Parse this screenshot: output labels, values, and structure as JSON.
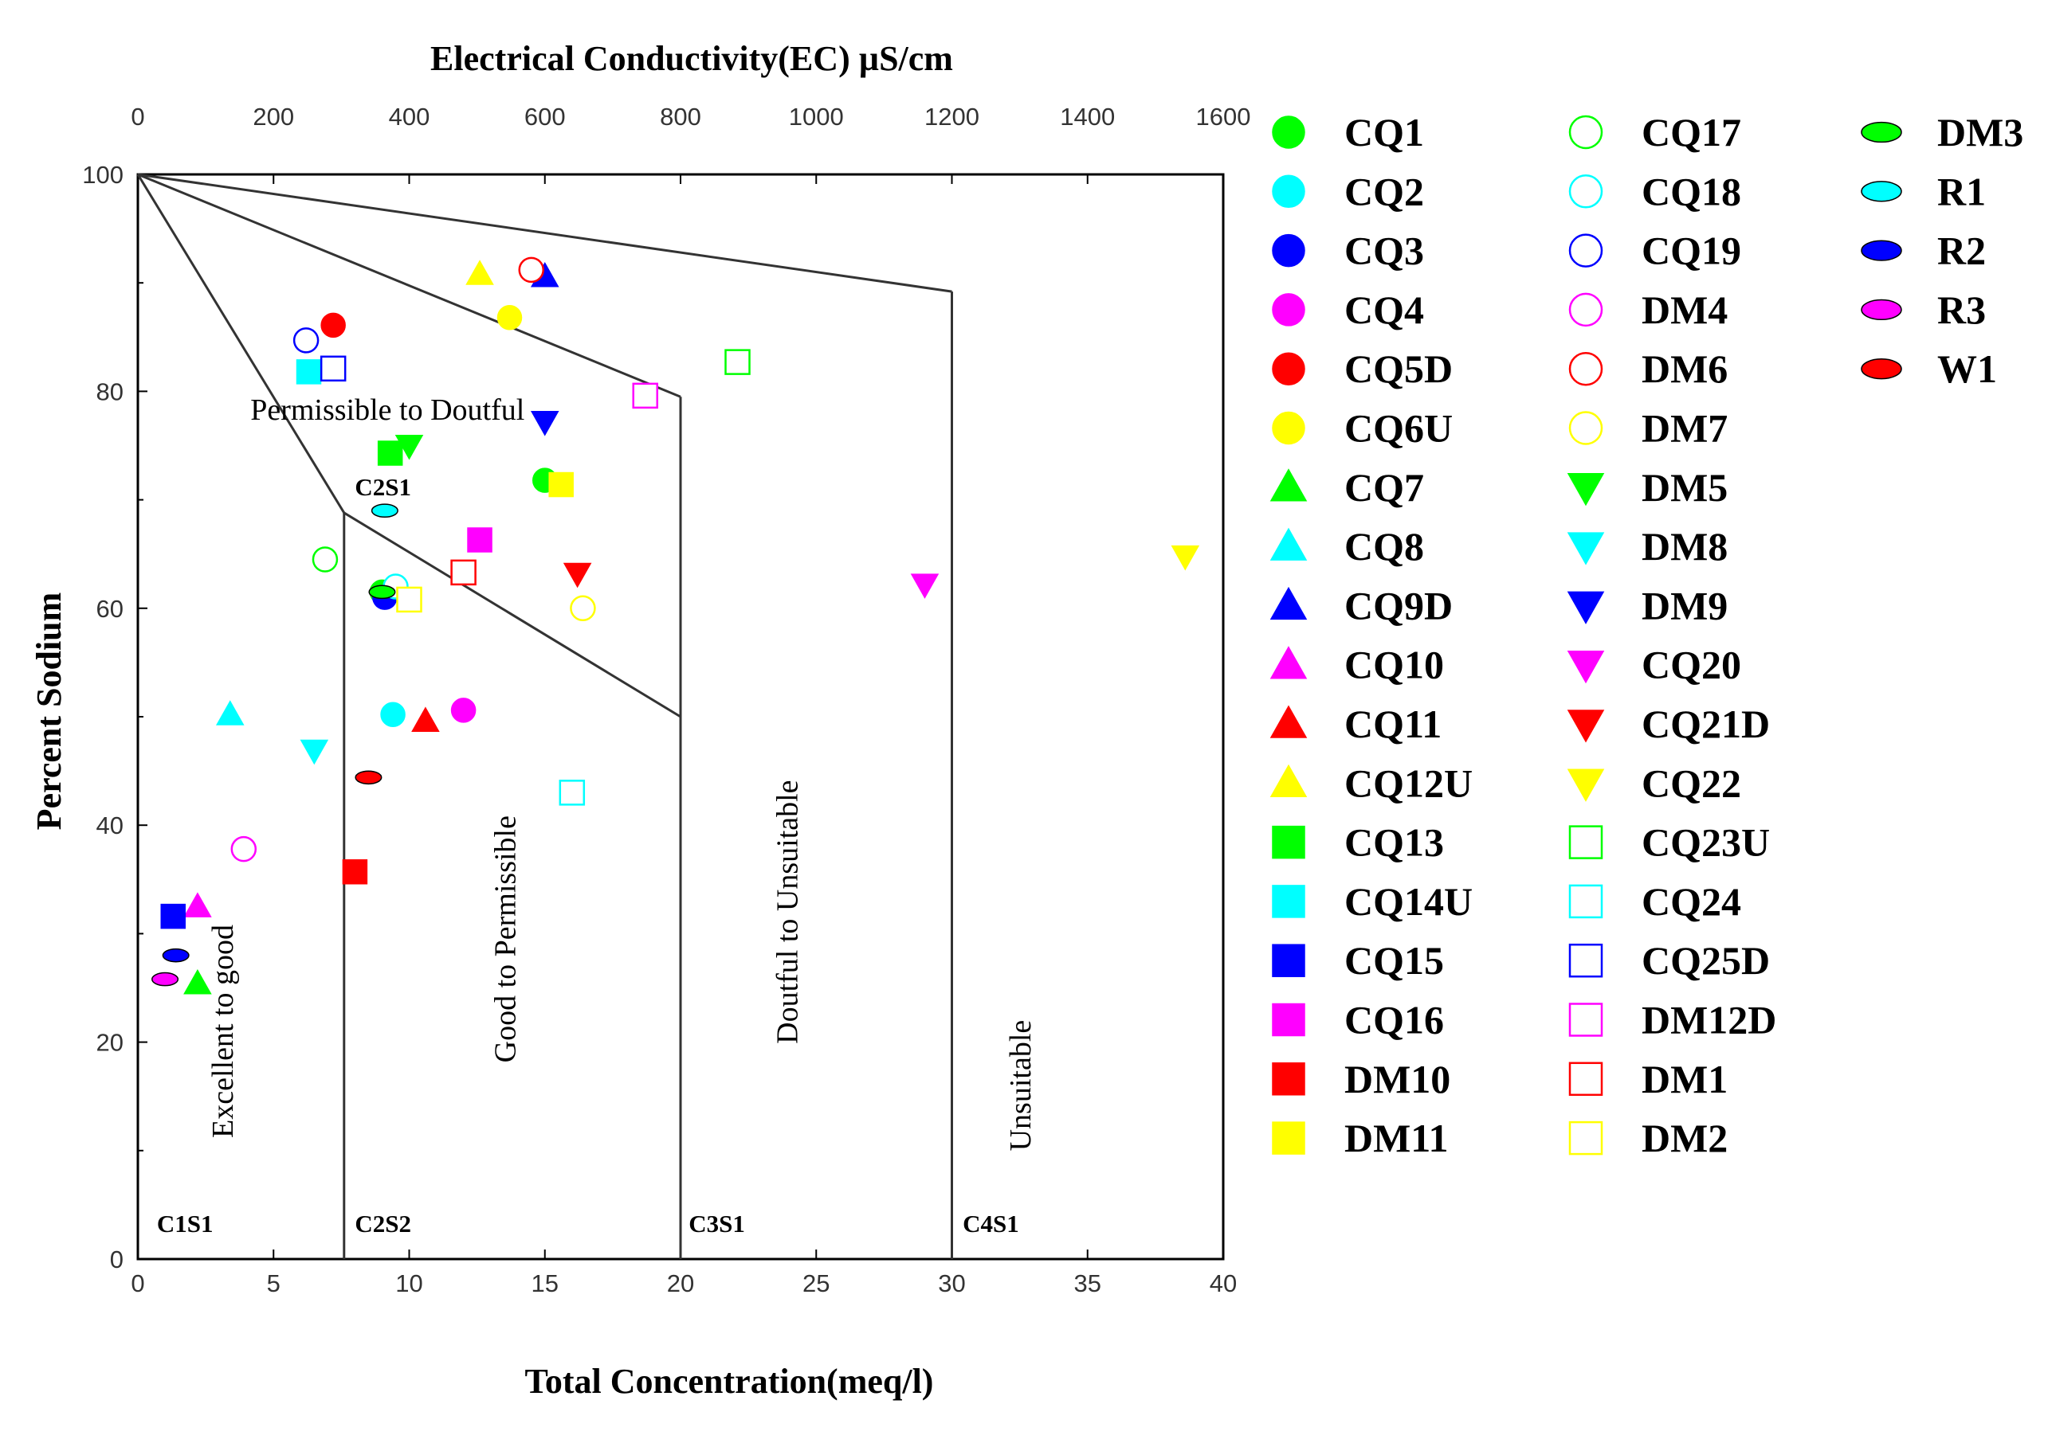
{
  "chart_data": {
    "type": "scatter",
    "title": "",
    "top_axis_label": "Electrical Conductivity(EC) µS/cm",
    "xlabel": "Total Concentration(meq/l)",
    "ylabel": "Percent Sodium",
    "xlim": [
      0,
      40
    ],
    "ylim": [
      0,
      100
    ],
    "x_ticks": [
      "0",
      "5",
      "10",
      "15",
      "20",
      "25",
      "30",
      "35",
      "40"
    ],
    "y_ticks": [
      "0",
      "20",
      "40",
      "60",
      "80",
      "100"
    ],
    "top_ticks": [
      "0",
      "200",
      "400",
      "600",
      "800",
      "1000",
      "1200",
      "1400",
      "1600"
    ],
    "boundaries": [
      {
        "from": [
          0,
          100
        ],
        "to": [
          7.6,
          68.8
        ]
      },
      {
        "from": [
          7.6,
          68.8
        ],
        "to": [
          20,
          50
        ]
      },
      {
        "from": [
          0,
          100
        ],
        "to": [
          20,
          79.5
        ]
      },
      {
        "from": [
          0,
          100
        ],
        "to": [
          30,
          89.2
        ]
      },
      {
        "from": [
          7.6,
          68.8
        ],
        "to": [
          7.6,
          0
        ]
      },
      {
        "from": [
          20,
          79.5
        ],
        "to": [
          20,
          0
        ]
      },
      {
        "from": [
          30,
          89.2
        ],
        "to": [
          30,
          0
        ]
      }
    ],
    "zone_labels": [
      {
        "text": "Permissible to Doutful",
        "x": 9.2,
        "y": 77.4,
        "rotate": false
      },
      {
        "text": "Excellent to good",
        "x": 3.5,
        "y": 21,
        "rotate": true
      },
      {
        "text": "Good to Permissible",
        "x": 13.9,
        "y": 29.5,
        "rotate": true
      },
      {
        "text": "Doutful to  Unsuitable",
        "x": 24.3,
        "y": 32,
        "rotate": true
      },
      {
        "text": "Unsuitable",
        "x": 32.9,
        "y": 16,
        "rotate": true
      }
    ],
    "class_codes": [
      {
        "text": "C1S1",
        "x": 0.7,
        "y": 2.5
      },
      {
        "text": "C2S2",
        "x": 8,
        "y": 2.5
      },
      {
        "text": "C3S1",
        "x": 20.3,
        "y": 2.5
      },
      {
        "text": "C4S1",
        "x": 30.4,
        "y": 2.5
      },
      {
        "text": "C2S1",
        "x": 8,
        "y": 70.4
      }
    ],
    "series": [
      {
        "name": "CQ1",
        "shape": "circle",
        "fill": true,
        "color": "#00ff00",
        "x": [
          15.0,
          9.0
        ],
        "y": [
          71.8,
          61.5
        ]
      },
      {
        "name": "CQ2",
        "shape": "circle",
        "fill": true,
        "color": "#00ffff",
        "x": [
          9.4
        ],
        "y": [
          50.2
        ]
      },
      {
        "name": "CQ3",
        "shape": "circle",
        "fill": true,
        "color": "#0000ff",
        "x": [
          9.1
        ],
        "y": [
          61.0
        ]
      },
      {
        "name": "CQ4",
        "shape": "circle",
        "fill": true,
        "color": "#ff00ff",
        "x": [
          12.0
        ],
        "y": [
          50.6
        ]
      },
      {
        "name": "CQ5D",
        "shape": "circle",
        "fill": true,
        "color": "#ff0000",
        "x": [
          7.2
        ],
        "y": [
          86.1
        ]
      },
      {
        "name": "CQ6U",
        "shape": "circle",
        "fill": true,
        "color": "#ffff00",
        "x": [
          13.7
        ],
        "y": [
          86.8
        ]
      },
      {
        "name": "CQ7",
        "shape": "triangle-up",
        "fill": true,
        "color": "#00ff00",
        "x": [
          2.2
        ],
        "y": [
          25.4
        ]
      },
      {
        "name": "CQ8",
        "shape": "triangle-up",
        "fill": true,
        "color": "#00ffff",
        "x": [
          3.4
        ],
        "y": [
          50.2
        ]
      },
      {
        "name": "CQ9D",
        "shape": "triangle-up",
        "fill": true,
        "color": "#0000ff",
        "x": [
          15.0
        ],
        "y": [
          90.6
        ]
      },
      {
        "name": "CQ10",
        "shape": "triangle-up",
        "fill": true,
        "color": "#ff00ff",
        "x": [
          2.2
        ],
        "y": [
          32.5
        ]
      },
      {
        "name": "CQ11",
        "shape": "triangle-up",
        "fill": true,
        "color": "#ff0000",
        "x": [
          10.6
        ],
        "y": [
          49.6
        ]
      },
      {
        "name": "CQ12U",
        "shape": "triangle-up",
        "fill": true,
        "color": "#ffff00",
        "x": [
          12.6
        ],
        "y": [
          90.8
        ]
      },
      {
        "name": "CQ13",
        "shape": "square",
        "fill": true,
        "color": "#00ff00",
        "x": [
          9.3
        ],
        "y": [
          74.3
        ]
      },
      {
        "name": "CQ14U",
        "shape": "square",
        "fill": true,
        "color": "#00ffff",
        "x": [
          6.3
        ],
        "y": [
          81.8
        ]
      },
      {
        "name": "CQ15",
        "shape": "square",
        "fill": true,
        "color": "#0000ff",
        "x": [
          1.3
        ],
        "y": [
          31.6
        ]
      },
      {
        "name": "CQ16",
        "shape": "square",
        "fill": true,
        "color": "#ff00ff",
        "x": [
          12.6
        ],
        "y": [
          66.3
        ]
      },
      {
        "name": "DM10",
        "shape": "square",
        "fill": true,
        "color": "#ff0000",
        "x": [
          8.0
        ],
        "y": [
          35.7
        ]
      },
      {
        "name": "DM11",
        "shape": "square",
        "fill": true,
        "color": "#ffff00",
        "x": [
          15.6
        ],
        "y": [
          71.4
        ]
      },
      {
        "name": "CQ17",
        "shape": "circle",
        "fill": false,
        "color": "#00ff00",
        "x": [
          6.9
        ],
        "y": [
          64.5
        ]
      },
      {
        "name": "CQ18",
        "shape": "circle",
        "fill": false,
        "color": "#00ffff",
        "x": [
          9.5
        ],
        "y": [
          62.0
        ]
      },
      {
        "name": "CQ19",
        "shape": "circle",
        "fill": false,
        "color": "#0000ff",
        "x": [
          6.2
        ],
        "y": [
          84.7
        ]
      },
      {
        "name": "DM4",
        "shape": "circle",
        "fill": false,
        "color": "#ff00ff",
        "x": [
          3.9
        ],
        "y": [
          37.8
        ]
      },
      {
        "name": "DM6",
        "shape": "circle",
        "fill": false,
        "color": "#ff0000",
        "x": [
          14.5
        ],
        "y": [
          91.2
        ]
      },
      {
        "name": "DM7",
        "shape": "circle",
        "fill": false,
        "color": "#ffff00",
        "x": [
          16.4
        ],
        "y": [
          60.0
        ]
      },
      {
        "name": "DM5",
        "shape": "triangle-down",
        "fill": true,
        "color": "#00ff00",
        "x": [
          10.0
        ],
        "y": [
          75.0
        ]
      },
      {
        "name": "DM8",
        "shape": "triangle-down",
        "fill": true,
        "color": "#00ffff",
        "x": [
          6.5
        ],
        "y": [
          46.9
        ]
      },
      {
        "name": "DM9",
        "shape": "triangle-down",
        "fill": true,
        "color": "#0000ff",
        "x": [
          15.0
        ],
        "y": [
          77.2
        ]
      },
      {
        "name": "CQ20",
        "shape": "triangle-down",
        "fill": true,
        "color": "#ff00ff",
        "x": [
          29.0
        ],
        "y": [
          62.2
        ]
      },
      {
        "name": "CQ21D",
        "shape": "triangle-down",
        "fill": true,
        "color": "#ff0000",
        "x": [
          16.2
        ],
        "y": [
          63.2
        ]
      },
      {
        "name": "CQ22",
        "shape": "triangle-down",
        "fill": true,
        "color": "#ffff00",
        "x": [
          38.6
        ],
        "y": [
          64.8
        ]
      },
      {
        "name": "CQ23U",
        "shape": "square",
        "fill": false,
        "color": "#00ff00",
        "x": [
          22.1
        ],
        "y": [
          82.7
        ]
      },
      {
        "name": "CQ24",
        "shape": "square",
        "fill": false,
        "color": "#00ffff",
        "x": [
          16.0
        ],
        "y": [
          43.0
        ]
      },
      {
        "name": "CQ25D",
        "shape": "square",
        "fill": false,
        "color": "#0000ff",
        "x": [
          7.2
        ],
        "y": [
          82.1
        ]
      },
      {
        "name": "DM12D",
        "shape": "square",
        "fill": false,
        "color": "#ff00ff",
        "x": [
          18.7
        ],
        "y": [
          79.6
        ]
      },
      {
        "name": "DM1",
        "shape": "square",
        "fill": false,
        "color": "#ff0000",
        "x": [
          12.0
        ],
        "y": [
          63.3
        ]
      },
      {
        "name": "DM2",
        "shape": "square",
        "fill": false,
        "color": "#ffff00",
        "x": [
          10.0
        ],
        "y": [
          60.8
        ]
      },
      {
        "name": "DM3",
        "shape": "ellipse",
        "fill": true,
        "color": "#00ff00",
        "x": [
          9.0
        ],
        "y": [
          61.5
        ]
      },
      {
        "name": "R1",
        "shape": "ellipse",
        "fill": true,
        "color": "#00ffff",
        "x": [
          9.1
        ],
        "y": [
          69.0
        ]
      },
      {
        "name": "R2",
        "shape": "ellipse",
        "fill": true,
        "color": "#0000ff",
        "x": [
          1.4
        ],
        "y": [
          28.0
        ]
      },
      {
        "name": "R3",
        "shape": "ellipse",
        "fill": true,
        "color": "#ff00ff",
        "x": [
          1.0
        ],
        "y": [
          25.8
        ]
      },
      {
        "name": "W1",
        "shape": "ellipse",
        "fill": true,
        "color": "#ff0000",
        "x": [
          8.5
        ],
        "y": [
          44.4
        ]
      }
    ]
  }
}
